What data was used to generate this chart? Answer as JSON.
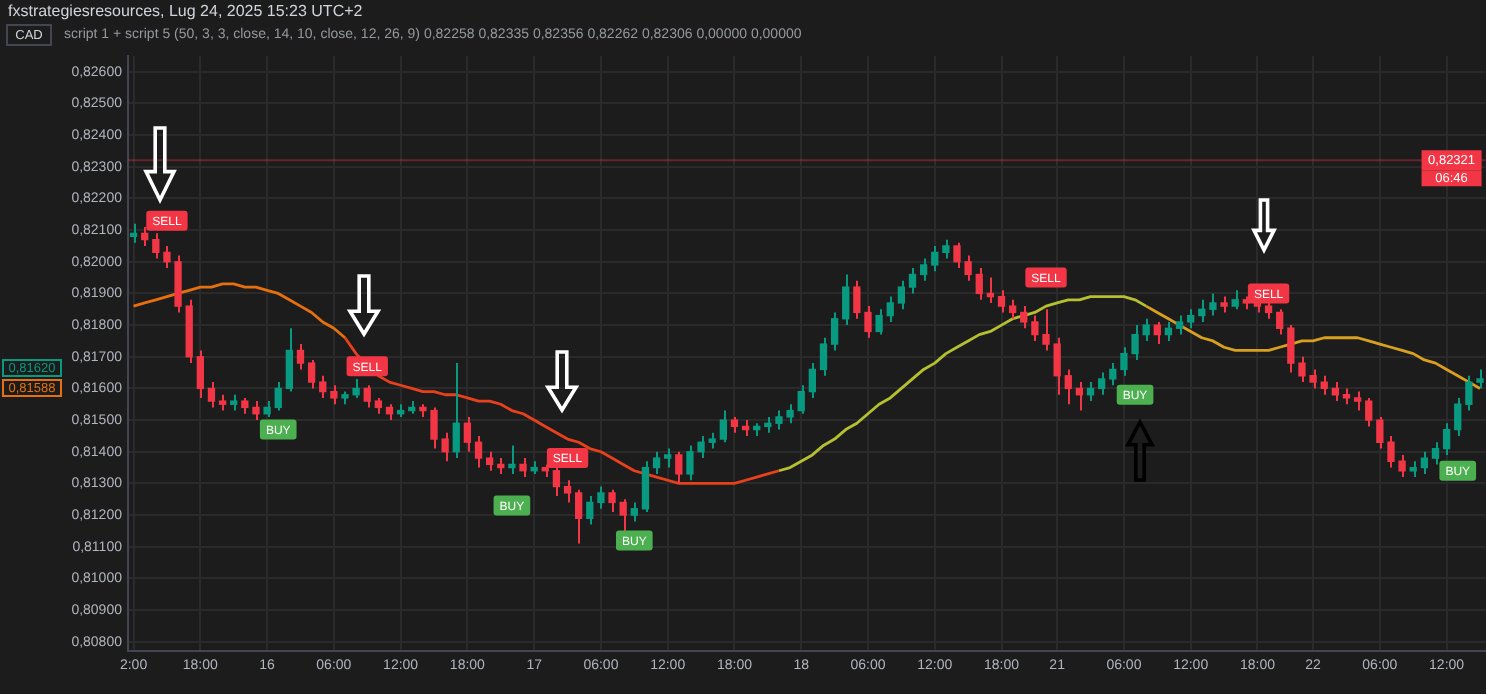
{
  "chart_data": {
    "type": "candlestick",
    "title": "fxstrategiesresources, Lug 24, 2025 15:23 UTC+2",
    "subtitle": "script 1 + script 5 (50, 3, 3, close, 14, 10, close, 12, 26, 9) 0,82258 0,82335 0,82356 0,82262 0,82306 0,00000 0,00000",
    "categories": [
      "2:00",
      null,
      null,
      null,
      null,
      null,
      "18:00",
      null,
      null,
      null,
      null,
      null,
      "16",
      null,
      null,
      null,
      null,
      null,
      "06:00",
      null,
      null,
      null,
      null,
      null,
      "12:00",
      null,
      null,
      null,
      null,
      null,
      "18:00",
      null,
      null,
      null,
      null,
      null,
      "17",
      null,
      null,
      null,
      null,
      null,
      "06:00",
      null,
      null,
      null,
      null,
      null,
      "12:00",
      null,
      null,
      null,
      null,
      null,
      "18:00",
      null,
      null,
      null,
      null,
      null,
      "18",
      null,
      null,
      null,
      null,
      null,
      "06:00",
      null,
      null,
      null,
      null,
      null,
      "12:00",
      null,
      null,
      null,
      null,
      null,
      "18:00",
      null,
      null,
      null,
      null,
      "21",
      null,
      null,
      null,
      null,
      null,
      "06:00",
      null,
      null,
      null,
      null,
      null,
      "12:00",
      null,
      null,
      null,
      null,
      null,
      "18:00",
      null,
      null,
      null,
      null,
      "22",
      null,
      null,
      null,
      null,
      null,
      "06:00",
      null,
      null,
      null,
      null,
      null,
      "12:00",
      null,
      null,
      null
    ],
    "ylim": [
      0.8077,
      0.8265
    ],
    "yticks": [
      {
        "value": 0.808,
        "label": "0,80800"
      },
      {
        "value": 0.809,
        "label": "0,80900"
      },
      {
        "value": 0.81,
        "label": "0,81000"
      },
      {
        "value": 0.811,
        "label": "0,81100"
      },
      {
        "value": 0.812,
        "label": "0,81200"
      },
      {
        "value": 0.813,
        "label": "0,81300"
      },
      {
        "value": 0.814,
        "label": "0,81400"
      },
      {
        "value": 0.815,
        "label": "0,81500"
      },
      {
        "value": 0.816,
        "label": "0,81600"
      },
      {
        "value": 0.817,
        "label": "0,81700"
      },
      {
        "value": 0.818,
        "label": "0,81800"
      },
      {
        "value": 0.819,
        "label": "0,81900"
      },
      {
        "value": 0.82,
        "label": "0,82000"
      },
      {
        "value": 0.821,
        "label": "0,82100"
      },
      {
        "value": 0.822,
        "label": "0,82200"
      },
      {
        "value": 0.823,
        "label": "0,82300"
      },
      {
        "value": 0.824,
        "label": "0,82400"
      },
      {
        "value": 0.825,
        "label": "0,82500"
      },
      {
        "value": 0.826,
        "label": "0,82600"
      }
    ],
    "grid": true,
    "series": [
      {
        "type": "line",
        "color": "#e6700f",
        "values": [
          0.8186,
          0.8187,
          0.8188,
          0.8189,
          0.819,
          0.8191,
          0.8192,
          0.8192,
          0.8193,
          0.8193,
          0.8192,
          0.8192,
          0.8191,
          0.819,
          0.8188,
          0.8186,
          0.8184,
          0.8181,
          0.8179,
          0.8176,
          null,
          null,
          null,
          null,
          null,
          null,
          null,
          null,
          null,
          null,
          null,
          null,
          null,
          null,
          null,
          null,
          null,
          null,
          null,
          null,
          null,
          null,
          null,
          null,
          null,
          null,
          null,
          null,
          null,
          null,
          null,
          null,
          null,
          null,
          null,
          null,
          null,
          null,
          null,
          null,
          null,
          null,
          null,
          null,
          null,
          null,
          null,
          null,
          null,
          null,
          null,
          null,
          null,
          null,
          null,
          null,
          null,
          null,
          null,
          null,
          null,
          null,
          null,
          null,
          null,
          null,
          null,
          null,
          null,
          null,
          null,
          null,
          null,
          null,
          null,
          null,
          null,
          null,
          null,
          null,
          null,
          null,
          null,
          null,
          null,
          null,
          null,
          null,
          null,
          null,
          null,
          null,
          null,
          null,
          null,
          null,
          null,
          null,
          null,
          null,
          null,
          null
        ]
      },
      {
        "type": "line",
        "color": "#e8401c",
        "values": [
          null,
          null,
          null,
          null,
          null,
          null,
          null,
          null,
          null,
          null,
          null,
          null,
          null,
          null,
          null,
          null,
          null,
          null,
          null,
          0.8176,
          0.8171,
          0.8167,
          0.8164,
          0.8162,
          0.8161,
          0.816,
          0.8159,
          0.8159,
          0.8158,
          0.8158,
          0.8157,
          0.8156,
          0.8156,
          0.8155,
          0.8153,
          0.8152,
          0.815,
          0.8148,
          0.8146,
          0.8144,
          0.8143,
          0.8141,
          0.814,
          0.8138,
          0.8136,
          0.8134,
          0.8133,
          0.8132,
          0.8131,
          0.813,
          0.813,
          0.813,
          0.813,
          0.813,
          0.813,
          0.8131,
          0.8132,
          0.8133,
          0.8134,
          null,
          null,
          null,
          null,
          null,
          null,
          null,
          null,
          null,
          null,
          null,
          null,
          null,
          null,
          null,
          null,
          null,
          null,
          null,
          null,
          null,
          null,
          null,
          null,
          null,
          null,
          null,
          null,
          null,
          null,
          null,
          null,
          null,
          null,
          null,
          null,
          null,
          null,
          null,
          null,
          null,
          null,
          null,
          null,
          null,
          null,
          null,
          null,
          null,
          null,
          null,
          null,
          null,
          null,
          null,
          null,
          null,
          null,
          null,
          null,
          null,
          null,
          null
        ]
      },
      {
        "type": "line",
        "color": "#b5c030",
        "values": [
          null,
          null,
          null,
          null,
          null,
          null,
          null,
          null,
          null,
          null,
          null,
          null,
          null,
          null,
          null,
          null,
          null,
          null,
          null,
          null,
          null,
          null,
          null,
          null,
          null,
          null,
          null,
          null,
          null,
          null,
          null,
          null,
          null,
          null,
          null,
          null,
          null,
          null,
          null,
          null,
          null,
          null,
          null,
          null,
          null,
          null,
          null,
          null,
          null,
          null,
          null,
          null,
          null,
          null,
          null,
          null,
          null,
          null,
          0.8134,
          0.8135,
          0.8137,
          0.8139,
          0.8142,
          0.8144,
          0.8147,
          0.8149,
          0.8152,
          0.8155,
          0.8157,
          0.816,
          0.8163,
          0.8166,
          0.8168,
          0.8171,
          0.8173,
          0.8175,
          0.8177,
          0.8178,
          0.818,
          0.8182,
          0.8183,
          0.8184,
          0.8186,
          0.8187,
          0.8188,
          0.8188,
          0.8189,
          0.8189,
          0.8189,
          0.8189,
          0.8188,
          0.8186,
          null,
          null,
          null,
          null,
          null,
          null,
          null,
          null,
          null,
          null,
          null,
          null,
          null,
          null,
          null,
          null,
          null,
          null,
          null,
          null,
          null,
          null,
          null,
          null,
          null,
          null,
          null,
          null,
          null,
          null
        ]
      },
      {
        "type": "line",
        "color": "#d9a020",
        "values": [
          null,
          null,
          null,
          null,
          null,
          null,
          null,
          null,
          null,
          null,
          null,
          null,
          null,
          null,
          null,
          null,
          null,
          null,
          null,
          null,
          null,
          null,
          null,
          null,
          null,
          null,
          null,
          null,
          null,
          null,
          null,
          null,
          null,
          null,
          null,
          null,
          null,
          null,
          null,
          null,
          null,
          null,
          null,
          null,
          null,
          null,
          null,
          null,
          null,
          null,
          null,
          null,
          null,
          null,
          null,
          null,
          null,
          null,
          null,
          null,
          null,
          null,
          null,
          null,
          null,
          null,
          null,
          null,
          null,
          null,
          null,
          null,
          null,
          null,
          null,
          null,
          null,
          null,
          null,
          null,
          null,
          null,
          null,
          null,
          null,
          null,
          null,
          null,
          null,
          null,
          null,
          0.8186,
          0.8184,
          0.8182,
          0.818,
          0.8178,
          0.8176,
          0.8175,
          0.8173,
          0.8172,
          0.8172,
          0.8172,
          0.8172,
          0.8173,
          0.8174,
          0.8175,
          0.8175,
          0.8176,
          0.8176,
          0.8176,
          0.8176,
          0.8175,
          0.8174,
          0.8173,
          0.8172,
          0.8171,
          0.8169,
          0.8168,
          0.8166,
          0.8164,
          0.8162,
          0.816
        ]
      },
      {
        "ohlc": [
          [
            0.8208,
            0.8212,
            0.8206,
            0.8209
          ],
          [
            0.8209,
            0.8211,
            0.8205,
            0.8207
          ],
          [
            0.8207,
            0.8209,
            0.8201,
            0.8203
          ],
          [
            0.8203,
            0.8205,
            0.8198,
            0.82
          ],
          [
            0.82,
            0.8202,
            0.8184,
            0.8186
          ],
          [
            0.8186,
            0.8188,
            0.8168,
            0.817
          ],
          [
            0.817,
            0.8172,
            0.8157,
            0.816
          ],
          [
            0.816,
            0.8162,
            0.8154,
            0.8156
          ],
          [
            0.8156,
            0.8158,
            0.8153,
            0.8155
          ],
          [
            0.8155,
            0.8158,
            0.8153,
            0.8156
          ],
          [
            0.8156,
            0.8157,
            0.8152,
            0.8154
          ],
          [
            0.8154,
            0.8156,
            0.815,
            0.8152
          ],
          [
            0.8152,
            0.8156,
            0.8151,
            0.8154
          ],
          [
            0.8154,
            0.8162,
            0.8153,
            0.816
          ],
          [
            0.816,
            0.8179,
            0.8159,
            0.8172
          ],
          [
            0.8172,
            0.8174,
            0.8166,
            0.8168
          ],
          [
            0.8168,
            0.8169,
            0.816,
            0.8162
          ],
          [
            0.8162,
            0.8164,
            0.8157,
            0.8159
          ],
          [
            0.8159,
            0.8161,
            0.8155,
            0.8157
          ],
          [
            0.8157,
            0.8159,
            0.8155,
            0.8158
          ],
          [
            0.8158,
            0.8163,
            0.8157,
            0.816
          ],
          [
            0.816,
            0.8161,
            0.8154,
            0.8156
          ],
          [
            0.8156,
            0.8157,
            0.8152,
            0.8154
          ],
          [
            0.8154,
            0.8155,
            0.815,
            0.8152
          ],
          [
            0.8152,
            0.8155,
            0.8151,
            0.8153
          ],
          [
            0.8153,
            0.8156,
            0.8152,
            0.8154
          ],
          [
            0.8154,
            0.8155,
            0.8151,
            0.8153
          ],
          [
            0.8153,
            0.8154,
            0.8141,
            0.8144
          ],
          [
            0.8144,
            0.8146,
            0.8137,
            0.814
          ],
          [
            0.814,
            0.8168,
            0.8138,
            0.8149
          ],
          [
            0.8149,
            0.8151,
            0.814,
            0.8143
          ],
          [
            0.8143,
            0.8145,
            0.8135,
            0.8138
          ],
          [
            0.8138,
            0.814,
            0.8134,
            0.8136
          ],
          [
            0.8136,
            0.8138,
            0.8133,
            0.8135
          ],
          [
            0.8135,
            0.8142,
            0.8133,
            0.8136
          ],
          [
            0.8136,
            0.8138,
            0.8132,
            0.8134
          ],
          [
            0.8134,
            0.8137,
            0.8133,
            0.8135
          ],
          [
            0.8135,
            0.8136,
            0.8132,
            0.8134
          ],
          [
            0.8134,
            0.8135,
            0.8126,
            0.8129
          ],
          [
            0.8129,
            0.8131,
            0.8124,
            0.8127
          ],
          [
            0.8127,
            0.8128,
            0.8111,
            0.8119
          ],
          [
            0.8119,
            0.8126,
            0.8117,
            0.8124
          ],
          [
            0.8124,
            0.8129,
            0.8122,
            0.8127
          ],
          [
            0.8127,
            0.8128,
            0.8121,
            0.8124
          ],
          [
            0.8124,
            0.8125,
            0.8115,
            0.812
          ],
          [
            0.812,
            0.8124,
            0.8118,
            0.8122
          ],
          [
            0.8122,
            0.8137,
            0.8121,
            0.8135
          ],
          [
            0.8135,
            0.814,
            0.8133,
            0.8138
          ],
          [
            0.8138,
            0.8141,
            0.8135,
            0.8139
          ],
          [
            0.8139,
            0.814,
            0.813,
            0.8133
          ],
          [
            0.8133,
            0.8142,
            0.8131,
            0.814
          ],
          [
            0.814,
            0.8145,
            0.8138,
            0.8143
          ],
          [
            0.8143,
            0.8146,
            0.8141,
            0.8144
          ],
          [
            0.8144,
            0.8153,
            0.8143,
            0.815
          ],
          [
            0.815,
            0.8151,
            0.8146,
            0.8148
          ],
          [
            0.8148,
            0.815,
            0.8145,
            0.8147
          ],
          [
            0.8147,
            0.8149,
            0.8145,
            0.8148
          ],
          [
            0.8148,
            0.8151,
            0.8146,
            0.8149
          ],
          [
            0.8149,
            0.8153,
            0.8147,
            0.8151
          ],
          [
            0.8151,
            0.8155,
            0.8149,
            0.8153
          ],
          [
            0.8153,
            0.8161,
            0.8152,
            0.8159
          ],
          [
            0.8159,
            0.8168,
            0.8157,
            0.8166
          ],
          [
            0.8166,
            0.8176,
            0.8164,
            0.8174
          ],
          [
            0.8174,
            0.8184,
            0.8172,
            0.8182
          ],
          [
            0.8182,
            0.8196,
            0.818,
            0.8192
          ],
          [
            0.8192,
            0.8194,
            0.8182,
            0.8184
          ],
          [
            0.8184,
            0.8186,
            0.8176,
            0.8178
          ],
          [
            0.8178,
            0.8185,
            0.8177,
            0.8183
          ],
          [
            0.8183,
            0.8189,
            0.8181,
            0.8187
          ],
          [
            0.8187,
            0.8194,
            0.8185,
            0.8192
          ],
          [
            0.8192,
            0.8198,
            0.819,
            0.8196
          ],
          [
            0.8196,
            0.8201,
            0.8194,
            0.8199
          ],
          [
            0.8199,
            0.8205,
            0.8197,
            0.8203
          ],
          [
            0.8203,
            0.8207,
            0.8201,
            0.8205
          ],
          [
            0.8205,
            0.8206,
            0.8198,
            0.82
          ],
          [
            0.82,
            0.8202,
            0.8194,
            0.8196
          ],
          [
            0.8196,
            0.8198,
            0.8188,
            0.819
          ],
          [
            0.819,
            0.8195,
            0.8187,
            0.8189
          ],
          [
            0.8189,
            0.8191,
            0.8184,
            0.8186
          ],
          [
            0.8186,
            0.8188,
            0.8182,
            0.8184
          ],
          [
            0.8184,
            0.8186,
            0.8179,
            0.8181
          ],
          [
            0.8181,
            0.8183,
            0.8175,
            0.8177
          ],
          [
            0.8177,
            0.8185,
            0.8172,
            0.8174
          ],
          [
            0.8174,
            0.8176,
            0.8158,
            0.8164
          ],
          [
            0.8164,
            0.8166,
            0.8155,
            0.816
          ],
          [
            0.816,
            0.8162,
            0.8153,
            0.8158
          ],
          [
            0.8158,
            0.8162,
            0.8156,
            0.816
          ],
          [
            0.816,
            0.8165,
            0.8158,
            0.8163
          ],
          [
            0.8163,
            0.8168,
            0.8161,
            0.8166
          ],
          [
            0.8166,
            0.8173,
            0.8164,
            0.8171
          ],
          [
            0.8171,
            0.818,
            0.8169,
            0.8177
          ],
          [
            0.8177,
            0.8182,
            0.8175,
            0.818
          ],
          [
            0.818,
            0.8181,
            0.8174,
            0.8177
          ],
          [
            0.8177,
            0.8181,
            0.8175,
            0.8179
          ],
          [
            0.8179,
            0.8183,
            0.8177,
            0.8181
          ],
          [
            0.8181,
            0.8185,
            0.8179,
            0.8183
          ],
          [
            0.8183,
            0.8188,
            0.8181,
            0.8185
          ],
          [
            0.8185,
            0.819,
            0.8183,
            0.8187
          ],
          [
            0.8187,
            0.8189,
            0.8184,
            0.8186
          ],
          [
            0.8186,
            0.8191,
            0.8185,
            0.8188
          ],
          [
            0.8188,
            0.8189,
            0.8185,
            0.8187
          ],
          [
            0.8187,
            0.8189,
            0.8184,
            0.8186
          ],
          [
            0.8186,
            0.8187,
            0.8182,
            0.8184
          ],
          [
            0.8184,
            0.8185,
            0.8177,
            0.8179
          ],
          [
            0.8179,
            0.818,
            0.8165,
            0.8168
          ],
          [
            0.8168,
            0.817,
            0.8162,
            0.8164
          ],
          [
            0.8164,
            0.8166,
            0.816,
            0.8162
          ],
          [
            0.8162,
            0.8164,
            0.8158,
            0.816
          ],
          [
            0.816,
            0.8162,
            0.8156,
            0.8158
          ],
          [
            0.8158,
            0.816,
            0.8155,
            0.8157
          ],
          [
            0.8157,
            0.8159,
            0.8153,
            0.8156
          ],
          [
            0.8156,
            0.8157,
            0.8148,
            0.815
          ],
          [
            0.815,
            0.8151,
            0.8141,
            0.8143
          ],
          [
            0.8143,
            0.8145,
            0.8135,
            0.8137
          ],
          [
            0.8137,
            0.8139,
            0.8132,
            0.8134
          ],
          [
            0.8134,
            0.8137,
            0.8132,
            0.8135
          ],
          [
            0.8135,
            0.814,
            0.8133,
            0.8138
          ],
          [
            0.8138,
            0.8143,
            0.8136,
            0.8141
          ],
          [
            0.8141,
            0.8149,
            0.8139,
            0.8147
          ],
          [
            0.8147,
            0.8157,
            0.8145,
            0.8155
          ],
          [
            0.8155,
            0.8164,
            0.8153,
            0.8162
          ],
          [
            0.8162,
            0.8166,
            0.816,
            0.8163
          ]
        ]
      },
      {
        "type": "scatter",
        "name": "SELL",
        "color": "#f23645",
        "values": [
          null,
          null,
          null,
          0.8213,
          null,
          null,
          null,
          null,
          null,
          null,
          null,
          null,
          null,
          null,
          null,
          null,
          null,
          null,
          null,
          null,
          null,
          0.8167,
          null,
          null,
          null,
          null,
          null,
          null,
          null,
          null,
          null,
          null,
          null,
          null,
          null,
          null,
          null,
          null,
          null,
          0.8138,
          null,
          null,
          null,
          null,
          null,
          null,
          null,
          null,
          null,
          null,
          null,
          null,
          null,
          null,
          null,
          null,
          null,
          null,
          null,
          null,
          null,
          null,
          null,
          null,
          null,
          null,
          null,
          null,
          null,
          null,
          null,
          null,
          null,
          null,
          null,
          null,
          null,
          null,
          null,
          null,
          null,
          null,
          0.8195,
          null,
          null,
          null,
          null,
          null,
          null,
          null,
          null,
          null,
          null,
          null,
          null,
          null,
          null,
          null,
          null,
          null,
          null,
          null,
          0.819,
          null,
          null,
          null,
          null,
          null,
          null,
          null,
          null,
          null,
          null,
          null,
          null,
          null,
          null,
          null,
          null,
          null,
          null,
          null
        ]
      },
      {
        "type": "scatter",
        "name": "BUY",
        "color": "#4caf50",
        "values": [
          null,
          null,
          null,
          null,
          null,
          null,
          null,
          null,
          null,
          null,
          null,
          null,
          null,
          0.8147,
          null,
          null,
          null,
          null,
          null,
          null,
          null,
          null,
          null,
          null,
          null,
          null,
          null,
          null,
          null,
          null,
          null,
          null,
          null,
          null,
          0.8123,
          null,
          null,
          null,
          null,
          null,
          null,
          null,
          null,
          null,
          null,
          0.8112,
          null,
          null,
          null,
          null,
          null,
          null,
          null,
          null,
          null,
          null,
          null,
          null,
          null,
          null,
          null,
          null,
          null,
          null,
          null,
          null,
          null,
          null,
          null,
          null,
          null,
          null,
          null,
          null,
          null,
          null,
          null,
          null,
          null,
          null,
          null,
          null,
          null,
          null,
          null,
          null,
          null,
          null,
          null,
          null,
          0.8158,
          null,
          null,
          null,
          null,
          null,
          null,
          null,
          null,
          null,
          null,
          null,
          null,
          null,
          null,
          null,
          null,
          null,
          null,
          null,
          null,
          null,
          null,
          null,
          null,
          null,
          null,
          null,
          null,
          0.8134,
          null,
          null
        ]
      }
    ],
    "ref_lines": [
      {
        "axis": "y",
        "value": 0.82321,
        "label": "0,82321",
        "color": "#f23645"
      }
    ],
    "annotations": [
      "CAD",
      "06:46",
      "0,81620",
      "0,81588"
    ]
  }
}
